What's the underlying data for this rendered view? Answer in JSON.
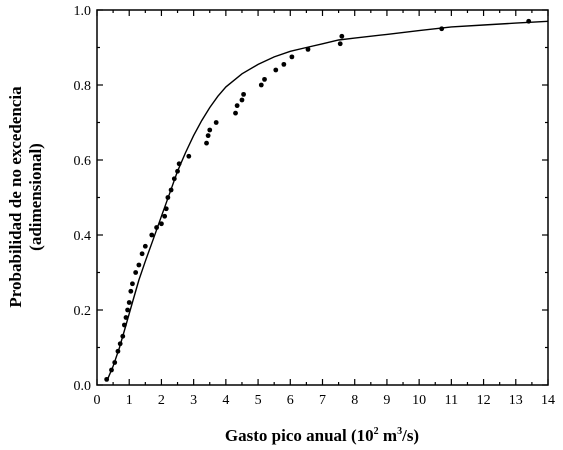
{
  "chart_data": {
    "type": "scatter",
    "title": "",
    "xlabel": {
      "part1": "Gasto pico anual (10",
      "sup1": "2",
      "part2": " m",
      "sup2": "3",
      "part3": "/s)"
    },
    "ylabel_line1": "Probabilidad de no excedencia",
    "ylabel_line2": "(adimensional)",
    "xlim": [
      0,
      14
    ],
    "ylim": [
      0,
      1.0
    ],
    "x_ticks": [
      0,
      1,
      2,
      3,
      4,
      5,
      6,
      7,
      8,
      9,
      10,
      11,
      12,
      13,
      14
    ],
    "y_ticks": [
      0.0,
      0.2,
      0.4,
      0.6,
      0.8,
      1.0
    ],
    "y_tick_labels": [
      "0.0",
      "0.2",
      "0.4",
      "0.6",
      "0.8",
      "1.0"
    ],
    "grid": false,
    "series": [
      {
        "kind": "points",
        "x": [
          0.3,
          0.45,
          0.55,
          0.65,
          0.72,
          0.8,
          0.85,
          0.9,
          0.95,
          1.0,
          1.05,
          1.1,
          1.2,
          1.3,
          1.4,
          1.5,
          1.7,
          1.85,
          2.0,
          2.1,
          2.15,
          2.2,
          2.3,
          2.4,
          2.5,
          2.55,
          2.85,
          3.4,
          3.45,
          3.5,
          3.7,
          4.3,
          4.35,
          4.5,
          4.55,
          5.1,
          5.2,
          5.55,
          5.8,
          6.05,
          6.55,
          7.55,
          7.6,
          10.7,
          13.4
        ],
        "y": [
          0.015,
          0.04,
          0.06,
          0.09,
          0.11,
          0.13,
          0.16,
          0.18,
          0.2,
          0.22,
          0.25,
          0.27,
          0.3,
          0.32,
          0.35,
          0.37,
          0.4,
          0.42,
          0.43,
          0.45,
          0.47,
          0.5,
          0.52,
          0.55,
          0.57,
          0.59,
          0.61,
          0.645,
          0.665,
          0.68,
          0.7,
          0.725,
          0.745,
          0.76,
          0.775,
          0.8,
          0.815,
          0.84,
          0.855,
          0.875,
          0.895,
          0.91,
          0.93,
          0.95,
          0.97
        ]
      },
      {
        "kind": "line",
        "x": [
          0.3,
          0.5,
          0.7,
          0.9,
          1.1,
          1.3,
          1.5,
          1.75,
          2.0,
          2.25,
          2.5,
          2.75,
          3.0,
          3.25,
          3.5,
          3.75,
          4.0,
          4.5,
          5.0,
          5.5,
          6.0,
          6.5,
          7.0,
          7.5,
          8.0,
          9.0,
          10.0,
          11.0,
          12.0,
          13.0,
          14.0
        ],
        "y": [
          0.01,
          0.05,
          0.1,
          0.16,
          0.22,
          0.28,
          0.33,
          0.39,
          0.45,
          0.51,
          0.57,
          0.62,
          0.665,
          0.705,
          0.74,
          0.77,
          0.795,
          0.83,
          0.855,
          0.875,
          0.89,
          0.9,
          0.91,
          0.92,
          0.925,
          0.935,
          0.945,
          0.955,
          0.96,
          0.965,
          0.97
        ]
      }
    ]
  }
}
